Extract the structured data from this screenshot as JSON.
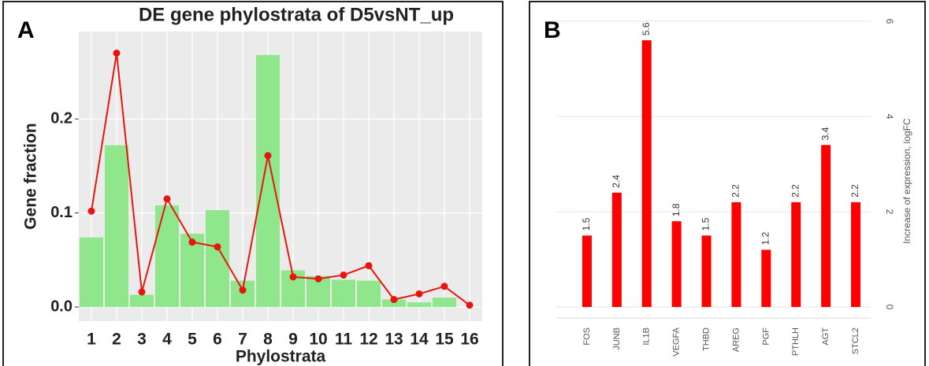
{
  "chart_data": [
    {
      "type": "combo",
      "panel_label": "A",
      "title": "DE gene phylostrata of D5vsNT_up",
      "x_label": "Phylostrata",
      "y_label": "Gene fraction",
      "categories": [
        "1",
        "2",
        "3",
        "4",
        "5",
        "6",
        "7",
        "8",
        "9",
        "10",
        "11",
        "12",
        "13",
        "14",
        "15",
        "16"
      ],
      "series": [
        {
          "type": "bar",
          "color": "#90e68a",
          "values": [
            0.074,
            0.172,
            0.013,
            0.108,
            0.078,
            0.103,
            0.028,
            0.268,
            0.039,
            0.033,
            0.029,
            0.028,
            0.008,
            0.005,
            0.01,
            0
          ]
        },
        {
          "type": "line",
          "color": "#e8150f",
          "values": [
            0.102,
            0.27,
            0.016,
            0.115,
            0.069,
            0.064,
            0.018,
            0.161,
            0.032,
            0.03,
            0.034,
            0.044,
            0.008,
            0.014,
            0.022,
            0.002
          ]
        }
      ],
      "ylim": [
        -0.015,
        0.293
      ],
      "yticks": [
        {
          "value": 0,
          "label": "0.0"
        },
        0.1,
        0.2
      ],
      "grid": true
    },
    {
      "type": "bar",
      "panel_label": "B",
      "y_label": "Increase of expression, logFC",
      "categories": [
        "FOS",
        "JUNB",
        "IL1B",
        "VEGFA",
        "THBD",
        "AREG",
        "PGF",
        "PTHLH",
        "AGT",
        "STCL2"
      ],
      "values": [
        1.5,
        2.4,
        5.6,
        1.8,
        1.5,
        2.2,
        1.2,
        2.2,
        3.4,
        2.2
      ],
      "color": "#ff0000",
      "ylim": [
        0,
        5.9
      ],
      "yticks": [
        0,
        2,
        4,
        6
      ],
      "grid": true
    }
  ]
}
